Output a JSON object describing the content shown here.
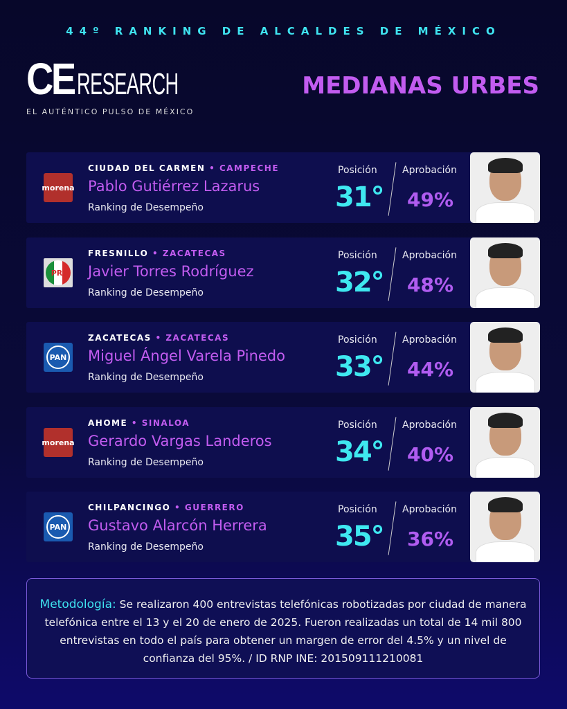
{
  "header": {
    "subtitle": "44º RANKING DE ALCALDES DE MÉXICO",
    "logo_ce": "CE",
    "logo_research": "RESEARCH",
    "tagline": "EL AUTÉNTICO PULSO DE MÉXICO",
    "title": "MEDIANAS URBES"
  },
  "labels": {
    "position": "Posición",
    "approval": "Aprobación",
    "ranking": "Ranking de Desempeño"
  },
  "mayors": [
    {
      "city": "CIUDAD DEL CARMEN",
      "state": "CAMPECHE",
      "name": "Pablo Gutiérrez Lazarus",
      "party": "morena",
      "position": "31°",
      "approval": "49%"
    },
    {
      "city": "FRESNILLO",
      "state": "ZACATECAS",
      "name": "Javier Torres Rodríguez",
      "party": "PRI",
      "position": "32°",
      "approval": "48%"
    },
    {
      "city": "ZACATECAS",
      "state": "ZACATECAS",
      "name": "Miguel Ángel Varela Pinedo",
      "party": "PAN",
      "position": "33°",
      "approval": "44%"
    },
    {
      "city": "AHOME",
      "state": "SINALOA",
      "name": "Gerardo Vargas Landeros",
      "party": "morena",
      "position": "34°",
      "approval": "40%"
    },
    {
      "city": "CHILPANCINGO",
      "state": "GUERRERO",
      "name": "Gustavo Alarcón Herrera",
      "party": "PAN",
      "position": "35°",
      "approval": "36%"
    }
  ],
  "methodology": {
    "label": "Metodología:",
    "text": "Se realizaron 400 entrevistas telefónicas robotizadas por ciudad de manera telefónica entre el 13 y el 20 de enero de 2025. Fueron realizadas un total de 14 mil 800 entrevistas  en todo el país para obtener un margen de error del 4.5% y un nivel de confianza del 95%. / ID RNP INE:  201509111210081"
  }
}
